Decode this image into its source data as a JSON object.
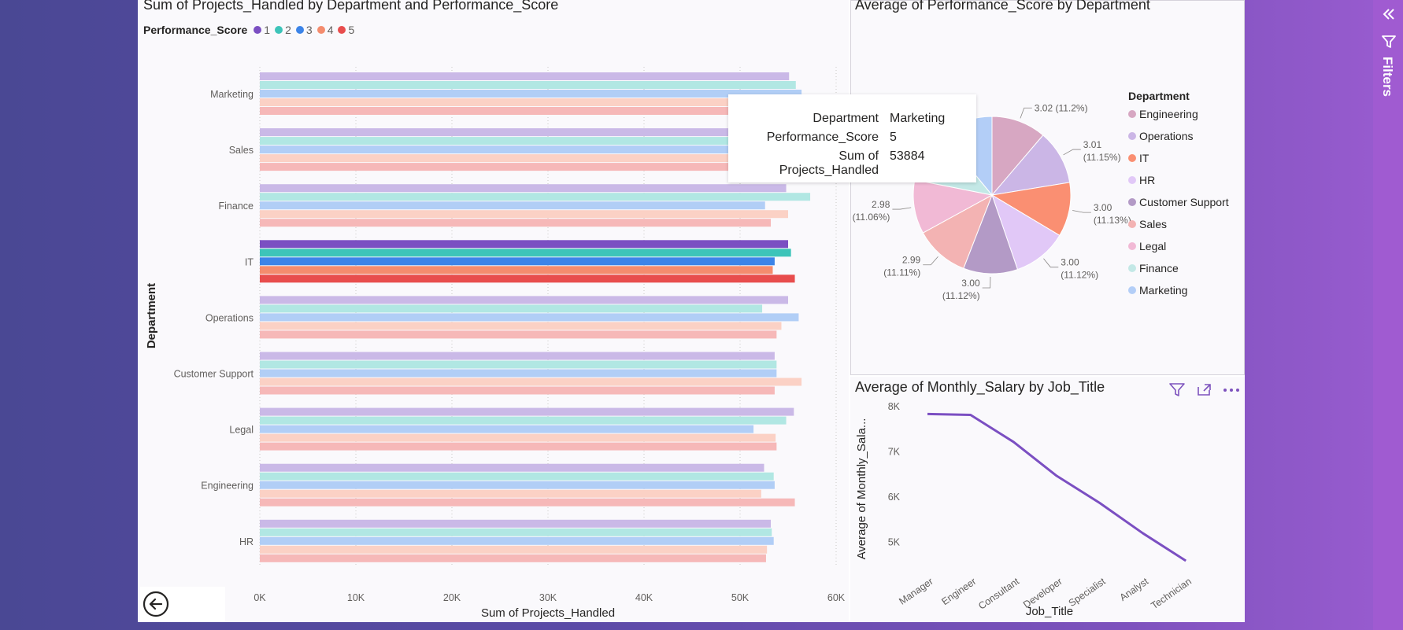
{
  "bar_chart": {
    "title": "Sum of Projects_Handled by Department and Performance_Score",
    "legend_title": "Performance_Score",
    "chart_data": {
      "type": "bar",
      "orientation": "horizontal",
      "categories": [
        "Marketing",
        "Sales",
        "Finance",
        "IT",
        "Operations",
        "Customer Support",
        "Legal",
        "Engineering",
        "HR"
      ],
      "series": [
        {
          "name": "1",
          "color": "#7b4fc2",
          "values": [
            55100,
            54300,
            54800,
            55000,
            55000,
            53600,
            55600,
            52500,
            53200
          ]
        },
        {
          "name": "2",
          "color": "#3dc4b9",
          "values": [
            55800,
            54600,
            57300,
            55300,
            52300,
            53800,
            54800,
            53500,
            53300
          ]
        },
        {
          "name": "3",
          "color": "#3c84e8",
          "values": [
            56400,
            54200,
            52600,
            53600,
            56100,
            53800,
            51400,
            53600,
            53500
          ]
        },
        {
          "name": "4",
          "color": "#f48c6e",
          "values": [
            53600,
            53000,
            55000,
            53400,
            54300,
            56400,
            53700,
            52200,
            52800
          ]
        },
        {
          "name": "5",
          "color": "#e84d4d",
          "values": [
            53884,
            53100,
            53200,
            55700,
            53800,
            53600,
            53800,
            55700,
            52700
          ]
        }
      ],
      "highlight_category": "IT",
      "xlabel": "Sum of Projects_Handled",
      "ylabel": "Department",
      "xlim": [
        0,
        60000
      ],
      "xticks": [
        "0K",
        "10K",
        "20K",
        "30K",
        "40K",
        "50K",
        "60K"
      ]
    }
  },
  "tooltip": {
    "rows": [
      {
        "key": "Department",
        "value": "Marketing"
      },
      {
        "key": "Performance_Score",
        "value": "5"
      },
      {
        "key": "Sum of Projects_Handled",
        "value": "53884"
      }
    ]
  },
  "pie_chart": {
    "title": "Average of Performance_Score by Department",
    "legend_title": "Department",
    "chart_data": {
      "type": "pie",
      "slices": [
        {
          "name": "Engineering",
          "value": 3.02,
          "label": "3.02 (11.2%)",
          "color": "#d7a7c2"
        },
        {
          "name": "Operations",
          "value": 3.01,
          "label": "3.01 (11.15%)",
          "color": "#cbb6e6"
        },
        {
          "name": "IT",
          "value": 3.0,
          "label": "3.00 (11.13%)",
          "color": "#fa8f72"
        },
        {
          "name": "HR",
          "value": 3.0,
          "label": "3.00 (11.12%)",
          "color": "#e1c8f7"
        },
        {
          "name": "Customer Support",
          "value": 3.0,
          "label": "3.00 (11.12%)",
          "color": "#b39ac6"
        },
        {
          "name": "Sales",
          "value": 2.99,
          "label": "2.99 (11.11%)",
          "color": "#f3b3b3"
        },
        {
          "name": "Legal",
          "value": 2.98,
          "label": "2.98 (11.06%)",
          "color": "#f1b9d5"
        },
        {
          "name": "Finance",
          "value": 2.95,
          "label": "",
          "color": "#c3e8e6"
        },
        {
          "name": "Marketing",
          "value": 2.94,
          "label": "",
          "color": "#b3cef7"
        }
      ]
    }
  },
  "line_chart": {
    "title": "Average of Monthly_Salary by Job_Title",
    "chart_data": {
      "type": "line",
      "categories": [
        "Manager",
        "Engineer",
        "Consultant",
        "Developer",
        "Specialist",
        "Analyst",
        "Technician"
      ],
      "values": [
        7820,
        7800,
        7200,
        6450,
        5850,
        5180,
        4570
      ],
      "xlabel": "Job_Title",
      "ylabel": "Average of Monthly_Sala...",
      "ylim": [
        4500,
        8000
      ],
      "yticks": [
        "5K",
        "6K",
        "7K",
        "8K"
      ],
      "color": "#7b4fc2"
    }
  },
  "filters": {
    "label": "Filters"
  }
}
